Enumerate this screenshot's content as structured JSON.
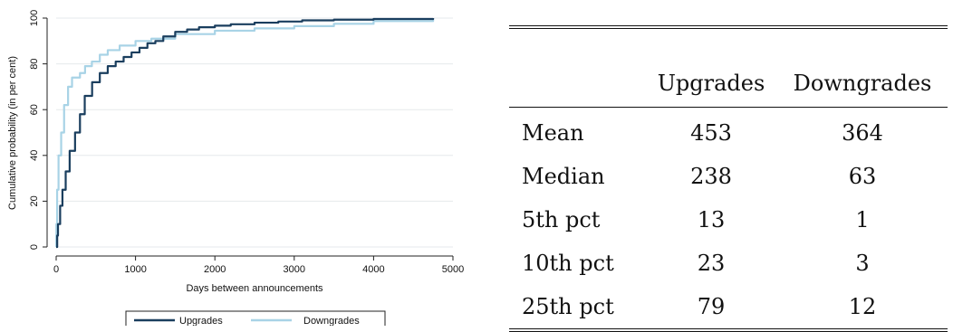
{
  "chart_data": {
    "type": "line",
    "title": "",
    "xlabel": "Days between announcements",
    "ylabel": "Cumulative probability (in per cent)",
    "xlim": [
      0,
      5000
    ],
    "ylim": [
      0,
      100
    ],
    "xticks": [
      0,
      1000,
      2000,
      3000,
      4000,
      5000
    ],
    "yticks": [
      0,
      20,
      40,
      60,
      80,
      100
    ],
    "grid": true,
    "legend": "bottom",
    "series": [
      {
        "name": "Upgrades",
        "color": "#1a3e5e",
        "x": [
          0,
          13,
          23,
          50,
          79,
          120,
          170,
          238,
          300,
          360,
          453,
          550,
          650,
          750,
          850,
          950,
          1050,
          1150,
          1250,
          1350,
          1500,
          1650,
          1800,
          2000,
          2200,
          2500,
          2800,
          3100,
          3500,
          4000,
          4750
        ],
        "y": [
          0,
          5,
          10,
          18,
          25,
          33,
          42,
          50,
          58,
          66,
          72,
          76,
          79,
          81,
          83,
          85,
          87,
          89,
          90,
          92,
          94,
          95,
          96,
          96.7,
          97.3,
          98,
          98.5,
          99,
          99.3,
          99.6,
          100
        ]
      },
      {
        "name": "Downgrades",
        "color": "#a8d3e6",
        "x": [
          0,
          1,
          3,
          12,
          30,
          63,
          100,
          150,
          200,
          300,
          364,
          450,
          550,
          650,
          800,
          1000,
          1200,
          1500,
          2000,
          2500,
          3000,
          3500,
          4000,
          4750
        ],
        "y": [
          0,
          5,
          10,
          25,
          40,
          50,
          62,
          70,
          74,
          76,
          79,
          81,
          84,
          86,
          88,
          90,
          91,
          93,
          94.5,
          95.5,
          96.5,
          97.5,
          98.7,
          99.5
        ]
      }
    ]
  },
  "table": {
    "headers": [
      "",
      "Upgrades",
      "Downgrades"
    ],
    "rows": [
      {
        "label": "Mean",
        "upgrades": "453",
        "downgrades": "364"
      },
      {
        "label": "Median",
        "upgrades": "238",
        "downgrades": "63"
      },
      {
        "label": "5th pct",
        "upgrades": "13",
        "downgrades": "1"
      },
      {
        "label": "10th pct",
        "upgrades": "23",
        "downgrades": "3"
      },
      {
        "label": "25th pct",
        "upgrades": "79",
        "downgrades": "12"
      }
    ]
  }
}
